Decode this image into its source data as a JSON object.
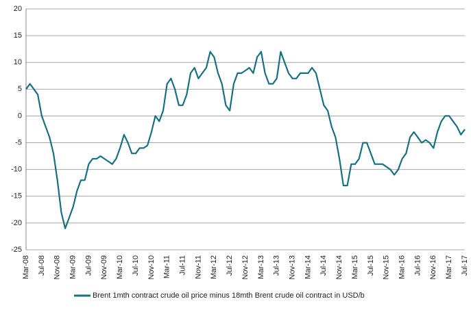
{
  "chart_data": {
    "type": "line",
    "categories": [
      "Mar-08",
      null,
      null,
      null,
      "Jul-08",
      null,
      null,
      null,
      "Nov-08",
      null,
      null,
      null,
      "Mar-09",
      null,
      null,
      null,
      "Jul-09",
      null,
      null,
      null,
      "Nov-09",
      null,
      null,
      null,
      "Mar-10",
      null,
      null,
      null,
      "Jul-10",
      null,
      null,
      null,
      "Nov-10",
      null,
      null,
      null,
      "Mar-11",
      null,
      null,
      null,
      "Jul-11",
      null,
      null,
      null,
      "Nov-11",
      null,
      null,
      null,
      "Mar-12",
      null,
      null,
      null,
      "Jul-12",
      null,
      null,
      null,
      "Nov-12",
      null,
      null,
      null,
      "Mar-13",
      null,
      null,
      null,
      "Jul-13",
      null,
      null,
      null,
      "Nov-13",
      null,
      null,
      null,
      "Mar-14",
      null,
      null,
      null,
      "Jul-14",
      null,
      null,
      null,
      "Nov-14",
      null,
      null,
      null,
      "Mar-15",
      null,
      null,
      null,
      "Jul-15",
      null,
      null,
      null,
      "Nov-15",
      null,
      null,
      null,
      "Mar-16",
      null,
      null,
      null,
      "Jul-16",
      null,
      null,
      null,
      "Nov-16",
      null,
      null,
      null,
      "Mar-17",
      null,
      null,
      null,
      "Jul-17"
    ],
    "series": [
      {
        "name": "Brent 1mth contract crude oil price minus 18mth Brent crude oil contract in USD/b",
        "color": "#17707f",
        "values": [
          5,
          6,
          5,
          4,
          0,
          -2,
          -4,
          -7,
          -12,
          -18,
          -21,
          -19,
          -17,
          -14,
          -12,
          -12,
          -9,
          -8,
          -8,
          -7.5,
          -8,
          -8.5,
          -9,
          -8,
          -6,
          -3.5,
          -5,
          -7,
          -7,
          -6,
          -6,
          -5.5,
          -3,
          0,
          -1,
          1,
          6,
          7,
          5,
          2,
          2,
          4,
          8,
          9,
          7,
          8,
          9,
          12,
          11,
          8,
          6,
          2,
          1,
          6,
          8,
          8,
          8.5,
          9,
          8,
          11,
          12,
          8,
          6,
          6,
          7,
          12,
          10,
          8,
          7,
          7,
          8,
          8,
          8,
          9,
          8,
          5,
          2,
          1,
          -2,
          -4,
          -8,
          -13,
          -13,
          -9,
          -9,
          -8,
          -5,
          -5,
          -7,
          -9,
          -9,
          -9,
          -9.5,
          -10,
          -11,
          -10,
          -8,
          -7,
          -4,
          -3,
          -4,
          -5,
          -4.5,
          -5,
          -6,
          -3,
          -1,
          0,
          0,
          -1,
          -2,
          -3.5,
          -2.5
        ]
      }
    ],
    "ylim": [
      -25,
      20
    ],
    "yticks": [
      -25,
      -20,
      -15,
      -10,
      -5,
      0,
      5,
      10,
      15,
      20
    ],
    "grid": true
  }
}
